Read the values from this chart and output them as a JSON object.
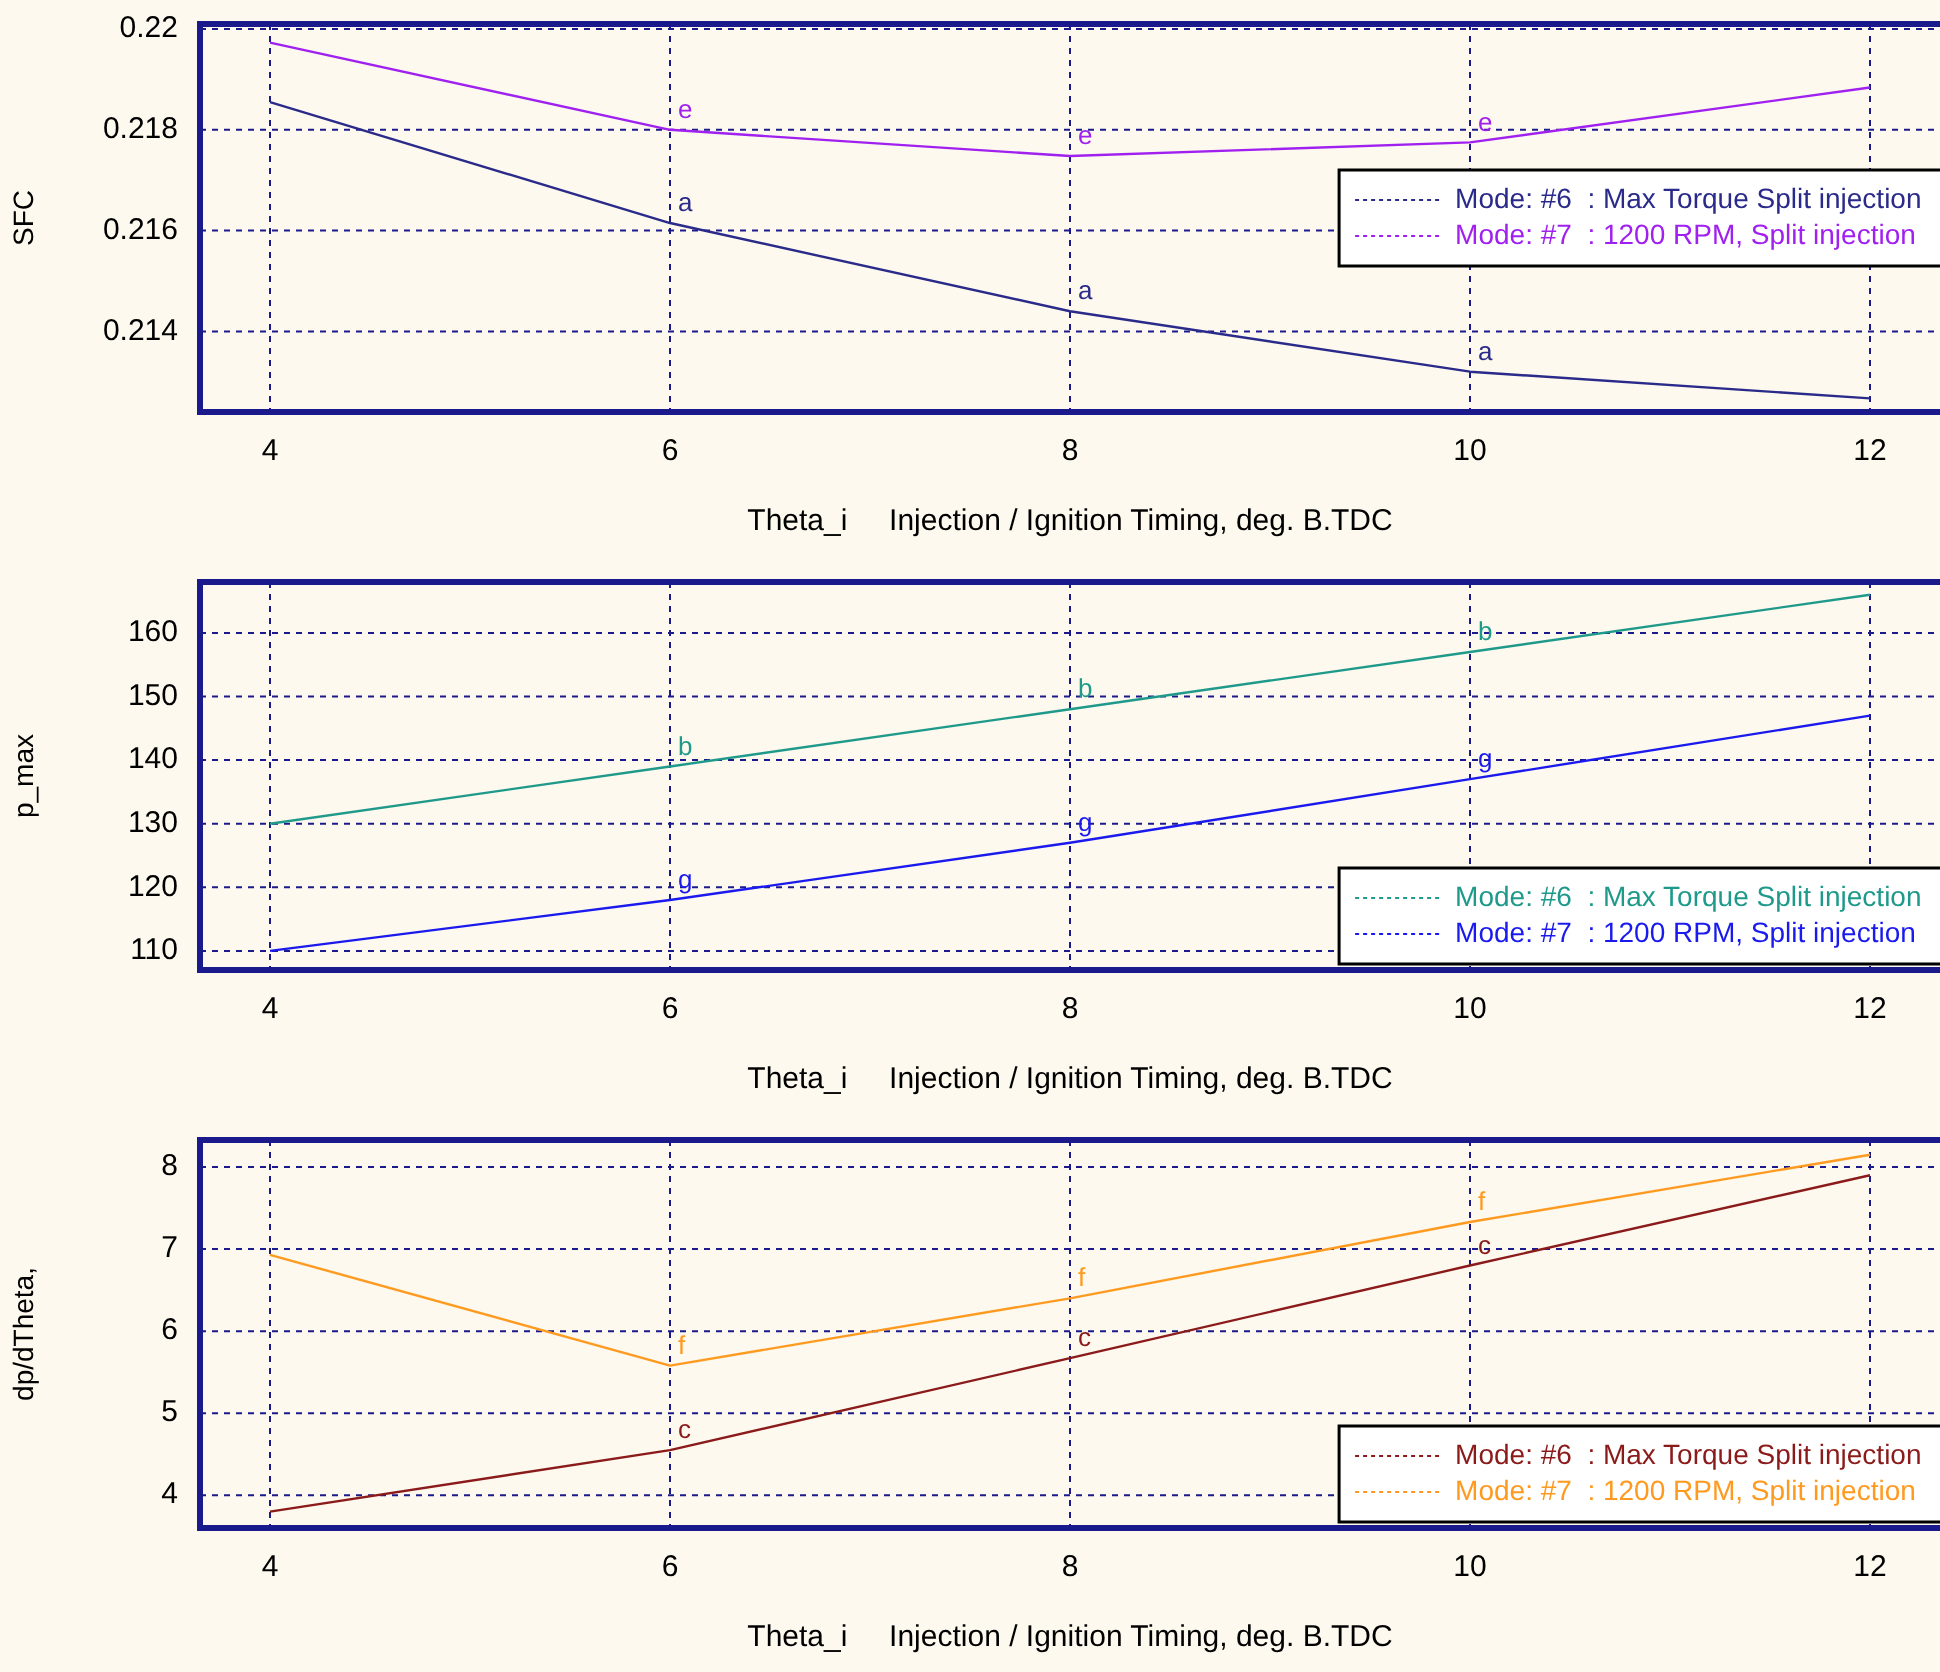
{
  "chart_data": [
    {
      "type": "line",
      "ylabel": "SFC",
      "xlabel": "Theta_i     Injection / Ignition Timing, deg. B.TDC",
      "x": [
        4,
        6,
        8,
        10,
        12
      ],
      "xlim": [
        3.65,
        12.35
      ],
      "xticks": [
        4,
        6,
        8,
        10,
        12
      ],
      "ylim": [
        0.2124,
        0.2201
      ],
      "yticks": [
        0.214,
        0.216,
        0.218,
        0.22
      ],
      "grid": true,
      "legend": "right",
      "marker": "none",
      "line_style": "solid",
      "series": [
        {
          "name": "Mode: #6  : Max Torque Split injection",
          "color": "#2a2a8a",
          "values": [
            0.21855,
            0.21615,
            0.2144,
            0.2132,
            0.21267
          ]
        },
        {
          "name": "Mode: #7  : 1200 RPM, Split injection",
          "color": "#a020f0",
          "values": [
            0.21973,
            0.218,
            0.21748,
            0.21775,
            0.21884
          ]
        }
      ],
      "annotations": [
        {
          "text": "a",
          "x": 6,
          "y": 0.21615
        },
        {
          "text": "a",
          "x": 8,
          "y": 0.2144
        },
        {
          "text": "a",
          "x": 10,
          "y": 0.2132
        },
        {
          "text": "e",
          "x": 6,
          "y": 0.218
        },
        {
          "text": "e",
          "x": 8,
          "y": 0.21748
        },
        {
          "text": "e",
          "x": 10,
          "y": 0.21775
        }
      ]
    },
    {
      "type": "line",
      "ylabel": "p_max",
      "xlabel": "Theta_i     Injection / Ignition Timing, deg. B.TDC",
      "x": [
        4,
        6,
        8,
        10,
        12
      ],
      "xlim": [
        3.65,
        12.35
      ],
      "xticks": [
        4,
        6,
        8,
        10,
        12
      ],
      "ylim": [
        107,
        168
      ],
      "yticks": [
        110,
        120,
        130,
        140,
        150,
        160
      ],
      "grid": true,
      "legend": "bottom right",
      "marker": "none",
      "line_style": "solid",
      "series": [
        {
          "name": "Mode: #6  : Max Torque Split injection",
          "color": "#1f9a8a",
          "values": [
            130,
            139,
            148,
            157,
            166
          ]
        },
        {
          "name": "Mode: #7  : 1200 RPM, Split injection",
          "color": "#1a1aee",
          "values": [
            110,
            118,
            127,
            137,
            147
          ]
        }
      ],
      "annotations": [
        {
          "text": "b",
          "x": 6,
          "y": 139
        },
        {
          "text": "b",
          "x": 8,
          "y": 148
        },
        {
          "text": "b",
          "x": 10,
          "y": 157
        },
        {
          "text": "g",
          "x": 6,
          "y": 118
        },
        {
          "text": "g",
          "x": 8,
          "y": 127
        },
        {
          "text": "g",
          "x": 10,
          "y": 137
        }
      ]
    },
    {
      "type": "line",
      "ylabel": "dp/dTheta,",
      "xlabel": "Theta_i     Injection / Ignition Timing, deg. B.TDC",
      "x": [
        4,
        6,
        8,
        10,
        12
      ],
      "xlim": [
        3.65,
        12.35
      ],
      "xticks": [
        4,
        6,
        8,
        10,
        12
      ],
      "ylim": [
        3.6,
        8.33
      ],
      "yticks": [
        4,
        5,
        6,
        7,
        8
      ],
      "grid": true,
      "legend": "bottom right",
      "marker": "none",
      "line_style": "solid",
      "series": [
        {
          "name": "Mode: #6  : Max Torque Split injection",
          "color": "#8b1a1a",
          "values": [
            3.8,
            4.55,
            5.67,
            6.8,
            7.9
          ]
        },
        {
          "name": "Mode: #7  : 1200 RPM, Split injection",
          "color": "#ff9a20",
          "values": [
            6.93,
            5.58,
            6.4,
            7.33,
            8.15
          ]
        }
      ],
      "annotations": [
        {
          "text": "c",
          "x": 6,
          "y": 4.55
        },
        {
          "text": "c",
          "x": 8,
          "y": 5.67
        },
        {
          "text": "c",
          "x": 10,
          "y": 6.8
        },
        {
          "text": "f",
          "x": 6,
          "y": 5.58
        },
        {
          "text": "f",
          "x": 8,
          "y": 6.4
        },
        {
          "text": "f",
          "x": 10,
          "y": 7.33
        }
      ]
    }
  ]
}
